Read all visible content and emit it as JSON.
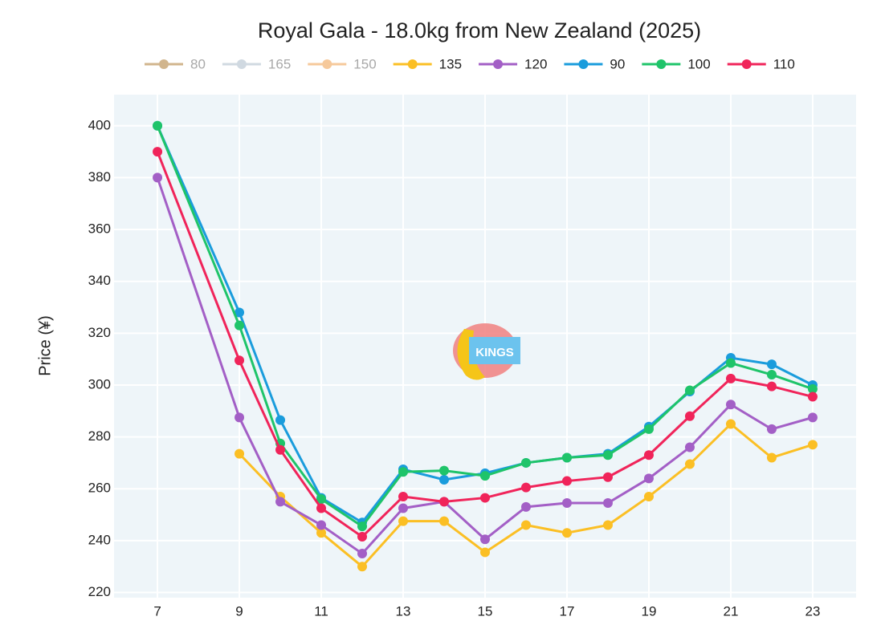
{
  "chart_data": {
    "type": "line",
    "title": "Royal Gala - 18.0kg from New Zealand (2025)",
    "y_label": "Price (¥)",
    "watermark": "KINGS",
    "x": [
      7,
      9,
      10,
      11,
      12,
      13,
      14,
      15,
      16,
      17,
      18,
      19,
      20,
      21,
      22,
      23
    ],
    "xlim": [
      5.94,
      24.06
    ],
    "xticks": [
      7,
      9,
      11,
      13,
      15,
      17,
      19,
      21,
      23
    ],
    "ylim": [
      218,
      412
    ],
    "yticks": [
      220,
      240,
      260,
      280,
      300,
      320,
      340,
      360,
      380,
      400
    ],
    "grid": true,
    "legend": "top",
    "series": [
      {
        "name": "80",
        "color": "#c9a97a",
        "visible": "legendonly",
        "values": [
          null,
          null,
          null,
          null,
          null,
          null,
          null,
          null,
          null,
          null,
          null,
          null,
          null,
          null,
          null,
          null
        ]
      },
      {
        "name": "165",
        "color": "#c8d3dc",
        "visible": "legendonly",
        "values": [
          null,
          null,
          null,
          null,
          null,
          null,
          null,
          null,
          null,
          null,
          null,
          null,
          null,
          null,
          null,
          null
        ]
      },
      {
        "name": "150",
        "color": "#f5c08a",
        "visible": "legendonly",
        "values": [
          null,
          null,
          null,
          null,
          null,
          null,
          null,
          null,
          null,
          null,
          null,
          null,
          null,
          null,
          null,
          null
        ]
      },
      {
        "name": "135",
        "color": "#fbbf24",
        "values": [
          null,
          273.5,
          257,
          243,
          230,
          247.5,
          247.5,
          235.5,
          246,
          243,
          246,
          257,
          269.5,
          285,
          272,
          277
        ]
      },
      {
        "name": "120",
        "color": "#a35fc6",
        "values": [
          380,
          287.5,
          255,
          246,
          235,
          252.5,
          255,
          240.5,
          253,
          254.5,
          254.5,
          264,
          276,
          292.5,
          283,
          287.5
        ]
      },
      {
        "name": "90",
        "color": "#1a9cdc",
        "values": [
          400,
          328,
          286.5,
          256.5,
          247,
          267.5,
          263.5,
          266,
          270,
          272,
          273.5,
          284,
          297.5,
          310.5,
          308,
          300
        ]
      },
      {
        "name": "100",
        "color": "#1fc46a",
        "values": [
          400,
          323,
          277.5,
          256,
          245.5,
          266.5,
          267,
          265,
          270,
          272,
          273,
          283,
          298,
          308.5,
          304,
          298.5
        ]
      },
      {
        "name": "110",
        "color": "#f0245a",
        "values": [
          390,
          309.5,
          275,
          252.5,
          241.5,
          257,
          255,
          256.5,
          260.5,
          263,
          264.5,
          273,
          288,
          302.5,
          299.5,
          295.5
        ]
      }
    ]
  }
}
